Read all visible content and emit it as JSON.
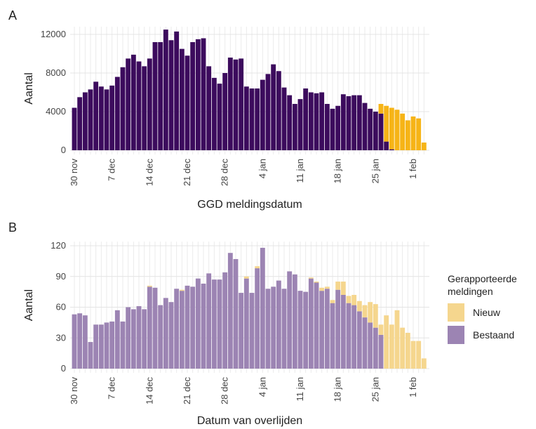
{
  "chart_data": [
    {
      "type": "bar",
      "stacked": true,
      "panel": "A",
      "x_label": "GGD meldingsdatum",
      "y_label": "Aantal",
      "categories": [
        "30 nov",
        null,
        null,
        null,
        null,
        null,
        null,
        "7 dec",
        null,
        null,
        null,
        null,
        null,
        null,
        "14 dec",
        null,
        null,
        null,
        null,
        null,
        null,
        "21 dec",
        null,
        null,
        null,
        null,
        null,
        null,
        "28 dec",
        null,
        null,
        null,
        null,
        null,
        null,
        "4 jan",
        null,
        null,
        null,
        null,
        null,
        null,
        "11 jan",
        null,
        null,
        null,
        null,
        null,
        null,
        "18 jan",
        null,
        null,
        null,
        null,
        null,
        null,
        "25 jan",
        null,
        null,
        null,
        null,
        null,
        null,
        "1 feb",
        null,
        null
      ],
      "series": [
        {
          "color": "#f6b417",
          "values": [
            0,
            0,
            0,
            0,
            0,
            0,
            0,
            0,
            0,
            0,
            0,
            0,
            0,
            0,
            0,
            0,
            0,
            0,
            0,
            0,
            0,
            0,
            0,
            0,
            0,
            0,
            0,
            0,
            0,
            0,
            0,
            0,
            0,
            0,
            0,
            0,
            0,
            0,
            0,
            0,
            0,
            0,
            0,
            0,
            0,
            0,
            0,
            0,
            0,
            0,
            0,
            0,
            0,
            0,
            0,
            0,
            0,
            1000,
            3700,
            4300,
            4200,
            3800,
            3100,
            3500,
            3300,
            800
          ]
        },
        {
          "color": "#3c0b5d",
          "values": [
            4400,
            5500,
            6000,
            6300,
            7100,
            6600,
            6300,
            6700,
            7600,
            8600,
            9500,
            9900,
            9200,
            8700,
            9500,
            11200,
            11200,
            12500,
            11400,
            12300,
            10500,
            9800,
            11200,
            11500,
            11600,
            8700,
            7500,
            6900,
            8000,
            9600,
            9400,
            9500,
            6600,
            6400,
            6400,
            7300,
            7900,
            8900,
            8200,
            6500,
            5700,
            4800,
            5300,
            6400,
            6000,
            5900,
            6000,
            4800,
            4300,
            4600,
            5800,
            5600,
            5700,
            5700,
            4900,
            4300,
            4000,
            3800,
            900,
            100,
            0,
            0,
            0,
            0,
            0,
            0
          ]
        }
      ],
      "ylim": [
        0,
        12800
      ],
      "yticks": [
        0,
        4000,
        8000,
        12000
      ],
      "grid": true,
      "legend": false
    },
    {
      "type": "bar",
      "stacked": true,
      "panel": "B",
      "x_label": "Datum van overlijden",
      "y_label": "Aantal",
      "categories": [
        "30 nov",
        null,
        null,
        null,
        null,
        null,
        null,
        "7 dec",
        null,
        null,
        null,
        null,
        null,
        null,
        "14 dec",
        null,
        null,
        null,
        null,
        null,
        null,
        "21 dec",
        null,
        null,
        null,
        null,
        null,
        null,
        "28 dec",
        null,
        null,
        null,
        null,
        null,
        null,
        "4 jan",
        null,
        null,
        null,
        null,
        null,
        null,
        "11 jan",
        null,
        null,
        null,
        null,
        null,
        null,
        "18 jan",
        null,
        null,
        null,
        null,
        null,
        null,
        "25 jan",
        null,
        null,
        null,
        null,
        null,
        null,
        "1 feb",
        null,
        null
      ],
      "series": [
        {
          "name": "Nieuw",
          "color": "#f5d68e",
          "values": [
            0,
            0,
            0,
            0,
            0,
            0,
            0,
            0,
            0,
            0,
            0,
            0,
            0,
            0,
            1,
            0,
            0,
            0,
            0,
            0,
            1,
            0,
            0,
            0,
            0,
            0,
            0,
            0,
            0,
            0,
            0,
            0,
            2,
            0,
            2,
            0,
            0,
            0,
            0,
            0,
            0,
            0,
            0,
            0,
            1,
            1,
            3,
            2,
            3,
            8,
            13,
            7,
            10,
            10,
            12,
            20,
            23,
            10,
            52,
            43,
            57,
            40,
            35,
            27,
            27,
            10
          ]
        },
        {
          "name": "Bestaand",
          "color": "#9c84b3",
          "values": [
            53,
            54,
            52,
            26,
            43,
            43,
            45,
            46,
            57,
            46,
            60,
            58,
            61,
            58,
            80,
            79,
            62,
            69,
            65,
            78,
            76,
            81,
            80,
            88,
            83,
            93,
            87,
            87,
            94,
            113,
            107,
            74,
            88,
            74,
            98,
            118,
            78,
            80,
            86,
            78,
            95,
            92,
            76,
            75,
            88,
            84,
            76,
            78,
            64,
            77,
            72,
            64,
            62,
            56,
            50,
            45,
            40,
            33,
            0,
            0,
            0,
            0,
            0,
            0,
            0,
            0
          ]
        }
      ],
      "ylim": [
        0,
        124
      ],
      "yticks": [
        0,
        30,
        60,
        90,
        120
      ],
      "grid": true,
      "legend": true,
      "legend_title": [
        "Gerapporteerde",
        "meldingen"
      ],
      "legend_position": "right"
    }
  ]
}
